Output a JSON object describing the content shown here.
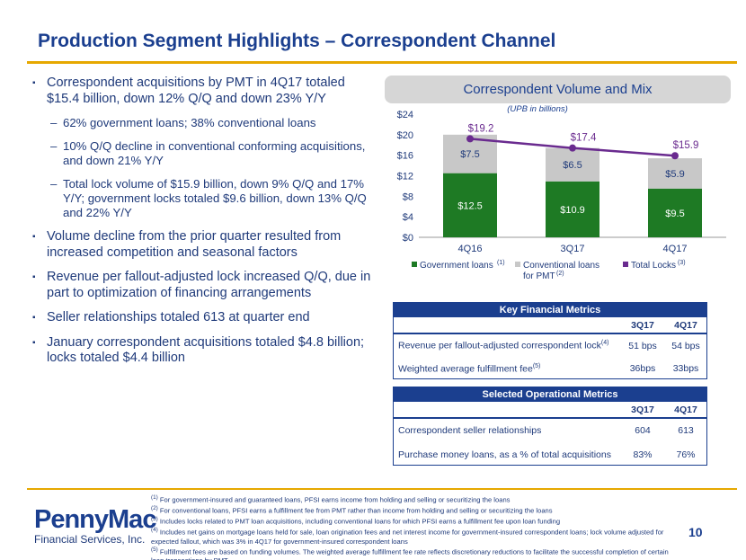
{
  "page": {
    "title": "Production Segment Highlights – Correspondent Channel",
    "number": "10"
  },
  "bullets": [
    {
      "level": 1,
      "text": "Correspondent acquisitions by PMT in 4Q17 totaled $15.4 billion, down 12% Q/Q and down 23% Y/Y"
    },
    {
      "level": 2,
      "text": "62% government loans; 38% conventional loans"
    },
    {
      "level": 2,
      "text": "10% Q/Q decline in conventional conforming acquisitions, and down 21% Y/Y"
    },
    {
      "level": 2,
      "text": "Total lock volume of $15.9 billion, down 9% Q/Q and 17% Y/Y; government locks totaled $9.6 billion, down 13% Q/Q and 22% Y/Y"
    },
    {
      "level": 1,
      "text": "Volume decline from the prior quarter resulted from increased competition and seasonal factors"
    },
    {
      "level": 1,
      "text": "Revenue per fallout-adjusted lock increased Q/Q, due in part to optimization of financing arrangements"
    },
    {
      "level": 1,
      "text": "Seller relationships totaled 613 at quarter end"
    },
    {
      "level": 1,
      "text": "January correspondent acquisitions totaled $4.8 billion; locks totaled $4.4 billion"
    }
  ],
  "chart_data": {
    "type": "bar",
    "title": "Correspondent Volume and Mix",
    "subtitle": "(UPB in billions)",
    "categories": [
      "4Q16",
      "3Q17",
      "4Q17"
    ],
    "series": [
      {
        "name": "Government loans",
        "sup": "(1)",
        "values": [
          12.5,
          10.9,
          9.5
        ],
        "labels": [
          "$12.5",
          "$10.9",
          "$9.5"
        ],
        "color": "#1e7a24",
        "kind": "stacked-bar"
      },
      {
        "name": "Conventional loans for PMT",
        "sup": "(2)",
        "values": [
          7.5,
          6.5,
          5.9
        ],
        "labels": [
          "$7.5",
          "$6.5",
          "$5.9"
        ],
        "color": "#c8c8c8",
        "kind": "stacked-bar"
      },
      {
        "name": "Total Locks",
        "sup": "(3)",
        "values": [
          19.2,
          17.4,
          15.9
        ],
        "labels": [
          "$19.2",
          "$17.4",
          "$15.9"
        ],
        "color": "#6a2b8f",
        "kind": "line"
      }
    ],
    "ylim": [
      0,
      24
    ],
    "yticks": [
      0,
      4,
      8,
      12,
      16,
      20,
      24
    ],
    "ytick_labels": [
      "$0",
      "$4",
      "$8",
      "$12",
      "$16",
      "$20",
      "$24"
    ],
    "grid": false,
    "legend_position": "bottom"
  },
  "key_metrics": {
    "title": "Key Financial Metrics",
    "columns": [
      "3Q17",
      "4Q17"
    ],
    "rows": [
      {
        "label": "Revenue per fallout-adjusted correspondent lock",
        "sup": "(4)",
        "values": [
          "51 bps",
          "54 bps"
        ]
      },
      {
        "label": "Weighted average fulfillment fee",
        "sup": "(5)",
        "values": [
          "36bps",
          "33bps"
        ]
      }
    ]
  },
  "operational_metrics": {
    "title": "Selected Operational Metrics",
    "columns": [
      "3Q17",
      "4Q17"
    ],
    "rows": [
      {
        "label": "Correspondent seller relationships",
        "values": [
          "604",
          "613"
        ]
      },
      {
        "label": "Purchase money loans, as a % of total acquisitions",
        "values": [
          "83%",
          "76%"
        ]
      }
    ]
  },
  "logo": {
    "name": "PennyMac",
    "subtitle": "Financial Services, Inc."
  },
  "footnotes": [
    {
      "sup": "(1)",
      "text": "For government-insured and guaranteed loans, PFSI earns income from holding and selling or securitizing the loans"
    },
    {
      "sup": "(2)",
      "text": "For conventional loans, PFSI earns a fulfillment fee from PMT rather than income from holding and selling or securitizing the loans"
    },
    {
      "sup": "(3)",
      "text": "Includes locks related to PMT loan acquisitions, including conventional loans for which PFSI earns a fulfillment fee upon loan funding"
    },
    {
      "sup": "(4)",
      "text": "Includes net gains on mortgage loans held for sale, loan origination fees and net interest income for government-insured correspondent loans; lock volume adjusted for expected fallout, which was 3% in 4Q17 for government-insured correspondent loans"
    },
    {
      "sup": "(5)",
      "text": "Fulfillment fees are based on funding volumes. The weighted average fulfillment fee rate reflects discretionary reductions to facilitate the successful completion of certain loan transactions by PMT"
    }
  ]
}
